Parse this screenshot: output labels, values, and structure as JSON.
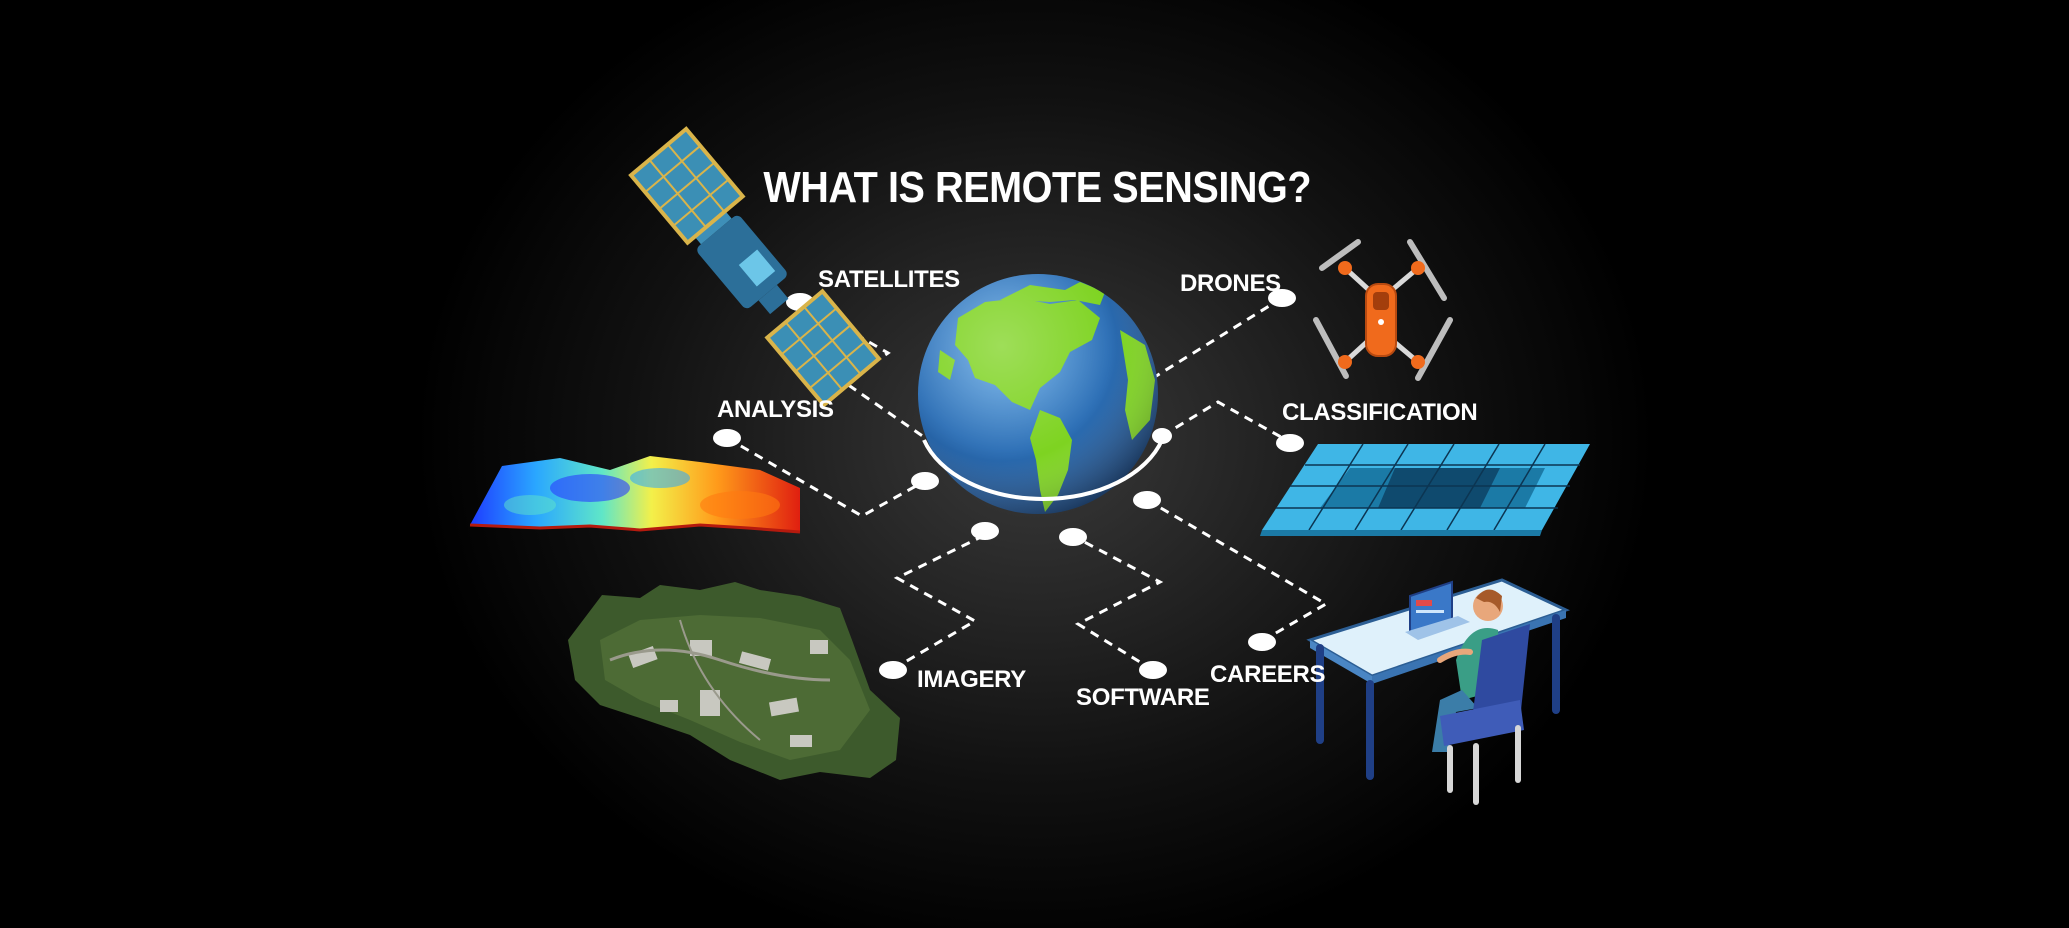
{
  "title": "WHAT IS REMOTE SENSING?",
  "labels": {
    "satellites": "SATELLITES",
    "drones": "DRONES",
    "analysis": "ANALYSIS",
    "classification": "CLASSIFICATION",
    "imagery": "IMAGERY",
    "software": "SOFTWARE",
    "careers": "CAREERS"
  },
  "colors": {
    "background": "#000000",
    "text": "#ffffff",
    "ocean": "#2f74c0",
    "land": "#7ed321",
    "solar_panel": "#3b8fb5",
    "drone_orange": "#f06a1c",
    "classification_blue": "#3fb6e6",
    "desk": "#dff1fb",
    "chair": "#2f4aa0"
  },
  "icons": [
    "satellite-icon",
    "drone-icon",
    "heatmap-surface-icon",
    "classification-grid-icon",
    "aerial-imagery-icon",
    "person-at-desk-icon",
    "earth-globe-icon"
  ]
}
